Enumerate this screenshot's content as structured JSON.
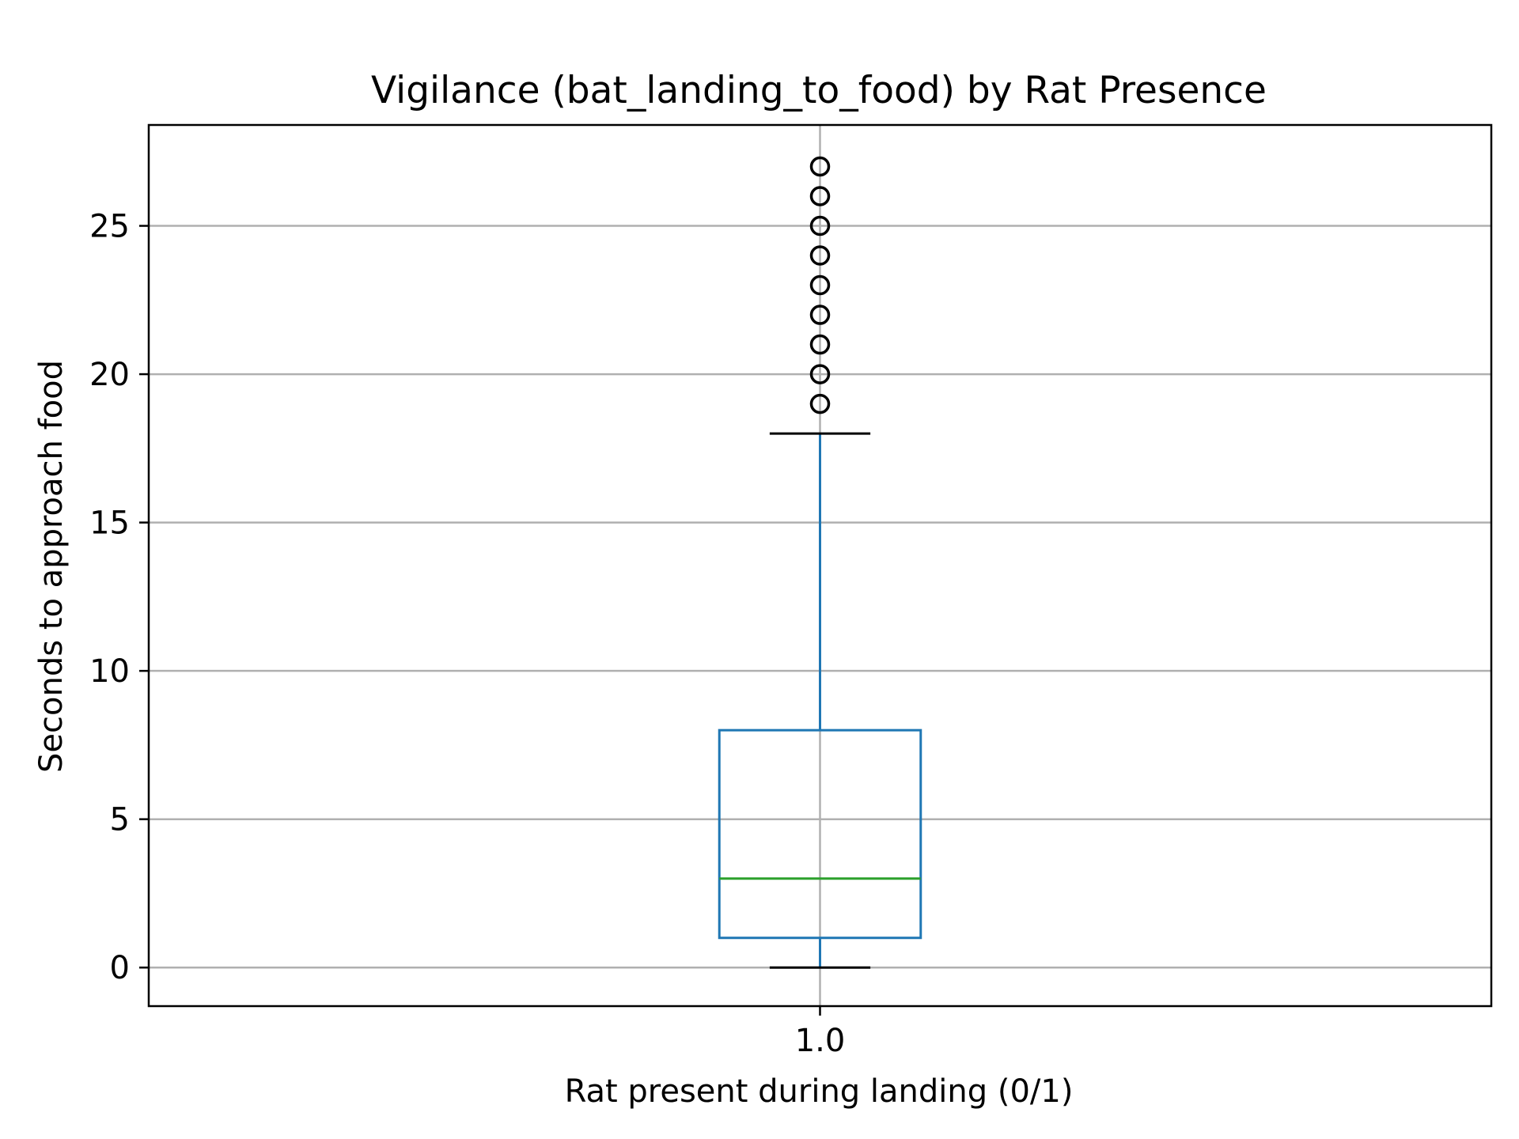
{
  "chart_data": {
    "type": "box",
    "title": "Vigilance (bat_landing_to_food) by Rat Presence",
    "xlabel": "Rat present during landing (0/1)",
    "ylabel": "Seconds to approach food",
    "categories": [
      "1.0"
    ],
    "ylim": [
      -1.3,
      28.4
    ],
    "yticks": [
      0,
      5,
      10,
      15,
      20,
      25
    ],
    "grid": true,
    "boxes": [
      {
        "category": "1.0",
        "whisker_low": 0,
        "q1": 1,
        "median": 3,
        "q3": 8,
        "whisker_high": 18,
        "outliers": [
          19,
          20,
          21,
          22,
          23,
          24,
          25,
          26,
          27
        ]
      }
    ],
    "colors": {
      "box": "#1f77b4",
      "median": "#2ca02c",
      "whisker_cap": "#000000",
      "outlier": "#000000",
      "grid": "#b0b0b0"
    }
  }
}
